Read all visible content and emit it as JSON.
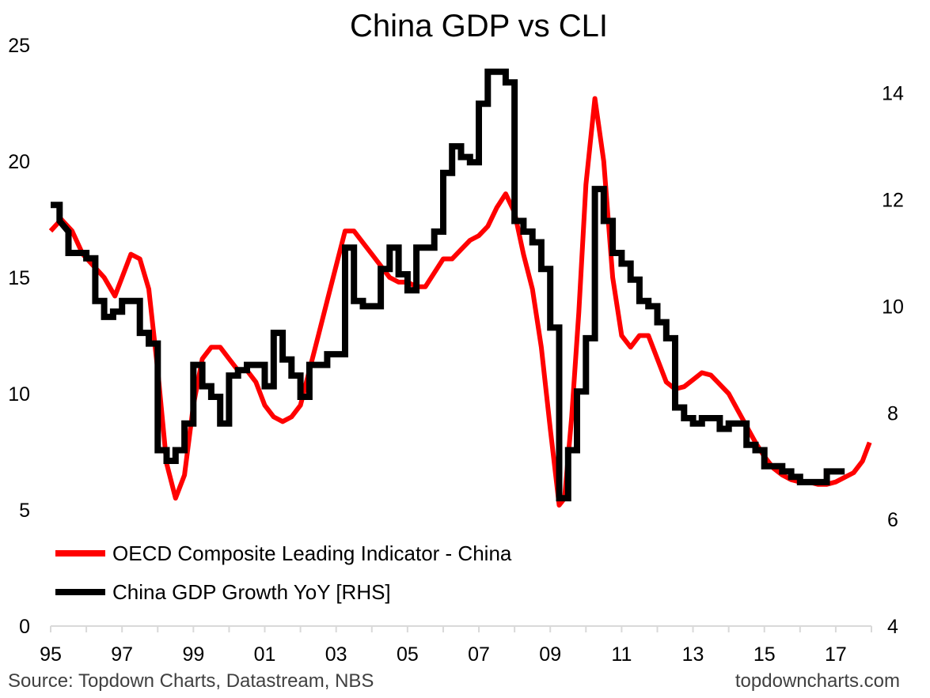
{
  "chart_data": {
    "type": "line",
    "title": "China GDP vs CLI",
    "x_tick_labels": [
      "95",
      "97",
      "99",
      "01",
      "03",
      "05",
      "07",
      "09",
      "11",
      "13",
      "15",
      "17"
    ],
    "x_tick_years": [
      1995,
      1997,
      1999,
      2001,
      2003,
      2005,
      2007,
      2009,
      2011,
      2013,
      2015,
      2017
    ],
    "xlim": [
      1995,
      2018
    ],
    "y_left": {
      "ticks": [
        0,
        5,
        10,
        15,
        20,
        25
      ],
      "lim": [
        0,
        25
      ]
    },
    "y_right": {
      "ticks": [
        4,
        6,
        8,
        10,
        12,
        14
      ],
      "lim": [
        4,
        14.9
      ]
    },
    "grid": false,
    "legend": "bottom-left",
    "series": [
      {
        "name": "OECD Composite Leading Indicator - China",
        "axis": "left",
        "color": "#ff0000",
        "points": [
          [
            1995.0,
            17.0
          ],
          [
            1995.3,
            17.5
          ],
          [
            1995.6,
            17.0
          ],
          [
            1995.9,
            16.0
          ],
          [
            1996.2,
            15.5
          ],
          [
            1996.5,
            15.0
          ],
          [
            1996.8,
            14.2
          ],
          [
            1997.0,
            15.0
          ],
          [
            1997.25,
            16.0
          ],
          [
            1997.5,
            15.8
          ],
          [
            1997.75,
            14.5
          ],
          [
            1998.0,
            11.0
          ],
          [
            1998.25,
            7.0
          ],
          [
            1998.5,
            5.5
          ],
          [
            1998.75,
            6.5
          ],
          [
            1999.0,
            9.5
          ],
          [
            1999.25,
            11.5
          ],
          [
            1999.5,
            12.0
          ],
          [
            1999.75,
            12.0
          ],
          [
            2000.0,
            11.5
          ],
          [
            2000.25,
            11.0
          ],
          [
            2000.5,
            11.0
          ],
          [
            2000.75,
            10.5
          ],
          [
            2001.0,
            9.5
          ],
          [
            2001.25,
            9.0
          ],
          [
            2001.5,
            8.8
          ],
          [
            2001.75,
            9.0
          ],
          [
            2002.0,
            9.5
          ],
          [
            2002.25,
            11.0
          ],
          [
            2002.5,
            12.5
          ],
          [
            2002.75,
            14.0
          ],
          [
            2003.0,
            15.5
          ],
          [
            2003.25,
            17.0
          ],
          [
            2003.5,
            17.0
          ],
          [
            2003.75,
            16.5
          ],
          [
            2004.0,
            16.0
          ],
          [
            2004.25,
            15.5
          ],
          [
            2004.5,
            15.0
          ],
          [
            2004.75,
            14.8
          ],
          [
            2005.0,
            14.8
          ],
          [
            2005.25,
            14.6
          ],
          [
            2005.5,
            14.6
          ],
          [
            2005.75,
            15.2
          ],
          [
            2006.0,
            15.8
          ],
          [
            2006.25,
            15.8
          ],
          [
            2006.5,
            16.2
          ],
          [
            2006.75,
            16.6
          ],
          [
            2007.0,
            16.8
          ],
          [
            2007.25,
            17.2
          ],
          [
            2007.5,
            18.0
          ],
          [
            2007.75,
            18.6
          ],
          [
            2008.0,
            17.8
          ],
          [
            2008.25,
            16.0
          ],
          [
            2008.5,
            14.5
          ],
          [
            2008.75,
            12.0
          ],
          [
            2009.0,
            8.5
          ],
          [
            2009.25,
            5.2
          ],
          [
            2009.4,
            5.5
          ],
          [
            2009.6,
            9.0
          ],
          [
            2009.8,
            13.5
          ],
          [
            2010.0,
            19.0
          ],
          [
            2010.25,
            22.7
          ],
          [
            2010.5,
            20.0
          ],
          [
            2010.75,
            15.0
          ],
          [
            2011.0,
            12.5
          ],
          [
            2011.25,
            12.0
          ],
          [
            2011.5,
            12.5
          ],
          [
            2011.75,
            12.5
          ],
          [
            2012.0,
            11.5
          ],
          [
            2012.25,
            10.5
          ],
          [
            2012.5,
            10.2
          ],
          [
            2012.75,
            10.3
          ],
          [
            2013.0,
            10.6
          ],
          [
            2013.25,
            10.9
          ],
          [
            2013.5,
            10.8
          ],
          [
            2013.75,
            10.4
          ],
          [
            2014.0,
            10.0
          ],
          [
            2014.25,
            9.3
          ],
          [
            2014.5,
            8.6
          ],
          [
            2014.75,
            7.9
          ],
          [
            2015.0,
            7.3
          ],
          [
            2015.25,
            6.8
          ],
          [
            2015.5,
            6.5
          ],
          [
            2015.75,
            6.3
          ],
          [
            2016.0,
            6.2
          ],
          [
            2016.25,
            6.2
          ],
          [
            2016.5,
            6.1
          ],
          [
            2016.75,
            6.1
          ],
          [
            2017.0,
            6.2
          ],
          [
            2017.25,
            6.4
          ],
          [
            2017.5,
            6.6
          ],
          [
            2017.75,
            7.1
          ],
          [
            2017.95,
            7.9
          ]
        ]
      },
      {
        "name": "China GDP Growth YoY [RHS]",
        "axis": "right",
        "color": "#000000",
        "points": [
          [
            1995.0,
            11.9
          ],
          [
            1995.25,
            11.9
          ],
          [
            1995.25,
            11.6
          ],
          [
            1995.5,
            11.4
          ],
          [
            1995.5,
            11.0
          ],
          [
            1996.0,
            11.0
          ],
          [
            1996.0,
            10.9
          ],
          [
            1996.25,
            10.9
          ],
          [
            1996.25,
            10.1
          ],
          [
            1996.5,
            10.1
          ],
          [
            1996.5,
            9.8
          ],
          [
            1996.75,
            9.8
          ],
          [
            1996.75,
            9.9
          ],
          [
            1997.0,
            9.9
          ],
          [
            1997.0,
            10.1
          ],
          [
            1997.5,
            10.1
          ],
          [
            1997.5,
            9.5
          ],
          [
            1997.75,
            9.5
          ],
          [
            1997.75,
            9.3
          ],
          [
            1998.0,
            9.3
          ],
          [
            1998.0,
            7.3
          ],
          [
            1998.25,
            7.3
          ],
          [
            1998.25,
            7.1
          ],
          [
            1998.5,
            7.1
          ],
          [
            1998.5,
            7.3
          ],
          [
            1998.75,
            7.3
          ],
          [
            1998.75,
            7.8
          ],
          [
            1999.0,
            7.8
          ],
          [
            1999.0,
            8.9
          ],
          [
            1999.25,
            8.9
          ],
          [
            1999.25,
            8.5
          ],
          [
            1999.5,
            8.5
          ],
          [
            1999.5,
            8.3
          ],
          [
            1999.75,
            8.3
          ],
          [
            1999.75,
            7.8
          ],
          [
            2000.0,
            7.8
          ],
          [
            2000.0,
            8.7
          ],
          [
            2000.25,
            8.7
          ],
          [
            2000.25,
            8.8
          ],
          [
            2000.5,
            8.8
          ],
          [
            2000.5,
            8.9
          ],
          [
            2001.0,
            8.9
          ],
          [
            2001.0,
            8.5
          ],
          [
            2001.25,
            8.5
          ],
          [
            2001.25,
            9.5
          ],
          [
            2001.5,
            9.5
          ],
          [
            2001.5,
            9.0
          ],
          [
            2001.75,
            9.0
          ],
          [
            2001.75,
            8.7
          ],
          [
            2002.0,
            8.7
          ],
          [
            2002.0,
            8.3
          ],
          [
            2002.25,
            8.3
          ],
          [
            2002.25,
            8.9
          ],
          [
            2002.75,
            8.9
          ],
          [
            2002.75,
            9.1
          ],
          [
            2003.25,
            9.1
          ],
          [
            2003.25,
            11.1
          ],
          [
            2003.5,
            11.1
          ],
          [
            2003.5,
            10.1
          ],
          [
            2003.75,
            10.1
          ],
          [
            2003.75,
            10.0
          ],
          [
            2004.25,
            10.0
          ],
          [
            2004.25,
            10.7
          ],
          [
            2004.5,
            10.7
          ],
          [
            2004.5,
            11.1
          ],
          [
            2004.75,
            11.1
          ],
          [
            2004.75,
            10.6
          ],
          [
            2005.0,
            10.6
          ],
          [
            2005.0,
            10.3
          ],
          [
            2005.25,
            10.3
          ],
          [
            2005.25,
            11.1
          ],
          [
            2005.75,
            11.1
          ],
          [
            2005.75,
            11.4
          ],
          [
            2006.0,
            11.4
          ],
          [
            2006.0,
            12.5
          ],
          [
            2006.25,
            12.5
          ],
          [
            2006.25,
            13.0
          ],
          [
            2006.5,
            13.0
          ],
          [
            2006.5,
            12.8
          ],
          [
            2006.75,
            12.8
          ],
          [
            2006.75,
            12.7
          ],
          [
            2007.0,
            12.7
          ],
          [
            2007.0,
            13.8
          ],
          [
            2007.25,
            13.8
          ],
          [
            2007.25,
            14.4
          ],
          [
            2007.75,
            14.4
          ],
          [
            2007.75,
            14.2
          ],
          [
            2008.0,
            14.2
          ],
          [
            2008.0,
            11.6
          ],
          [
            2008.25,
            11.6
          ],
          [
            2008.25,
            11.4
          ],
          [
            2008.5,
            11.4
          ],
          [
            2008.5,
            11.2
          ],
          [
            2008.75,
            11.2
          ],
          [
            2008.75,
            10.7
          ],
          [
            2009.0,
            10.7
          ],
          [
            2009.0,
            9.6
          ],
          [
            2009.25,
            9.6
          ],
          [
            2009.25,
            6.4
          ],
          [
            2009.5,
            6.4
          ],
          [
            2009.5,
            7.3
          ],
          [
            2009.75,
            7.3
          ],
          [
            2009.75,
            8.4
          ],
          [
            2010.0,
            8.4
          ],
          [
            2010.0,
            9.4
          ],
          [
            2010.25,
            9.4
          ],
          [
            2010.25,
            12.2
          ],
          [
            2010.5,
            12.2
          ],
          [
            2010.5,
            11.6
          ],
          [
            2010.75,
            11.6
          ],
          [
            2010.75,
            11.0
          ],
          [
            2011.0,
            11.0
          ],
          [
            2011.0,
            10.8
          ],
          [
            2011.25,
            10.8
          ],
          [
            2011.25,
            10.5
          ],
          [
            2011.5,
            10.5
          ],
          [
            2011.5,
            10.1
          ],
          [
            2011.75,
            10.1
          ],
          [
            2011.75,
            10.0
          ],
          [
            2012.0,
            10.0
          ],
          [
            2012.0,
            9.7
          ],
          [
            2012.25,
            9.7
          ],
          [
            2012.25,
            9.4
          ],
          [
            2012.5,
            9.4
          ],
          [
            2012.5,
            8.1
          ],
          [
            2012.75,
            8.1
          ],
          [
            2012.75,
            7.9
          ],
          [
            2013.0,
            7.9
          ],
          [
            2013.0,
            7.8
          ],
          [
            2013.25,
            7.8
          ],
          [
            2013.25,
            7.9
          ],
          [
            2013.75,
            7.9
          ],
          [
            2013.75,
            7.7
          ],
          [
            2014.0,
            7.7
          ],
          [
            2014.0,
            7.8
          ],
          [
            2014.5,
            7.8
          ],
          [
            2014.5,
            7.4
          ],
          [
            2014.75,
            7.4
          ],
          [
            2014.75,
            7.3
          ],
          [
            2015.0,
            7.3
          ],
          [
            2015.0,
            7.0
          ],
          [
            2015.5,
            7.0
          ],
          [
            2015.5,
            6.9
          ],
          [
            2015.75,
            6.9
          ],
          [
            2015.75,
            6.8
          ],
          [
            2016.0,
            6.8
          ],
          [
            2016.0,
            6.7
          ],
          [
            2016.75,
            6.7
          ],
          [
            2016.75,
            6.9
          ],
          [
            2017.25,
            6.9
          ]
        ]
      }
    ],
    "source": "Source: Topdown Charts, Datastream, NBS",
    "watermark": "topdowncharts.com"
  }
}
